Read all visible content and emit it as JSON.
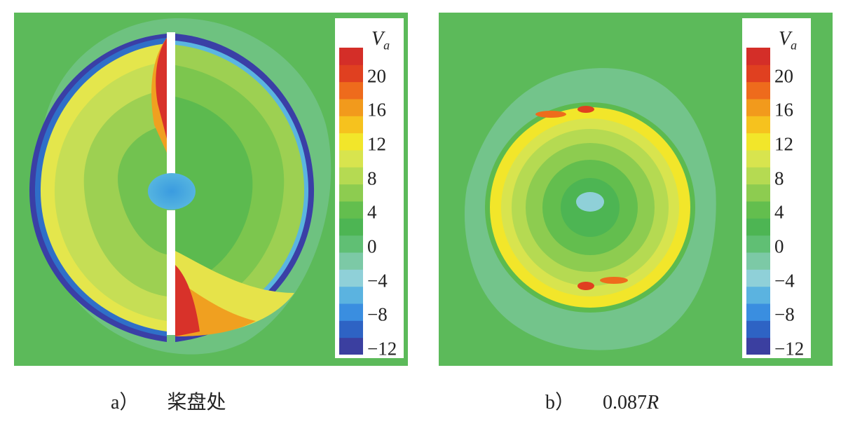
{
  "legend": {
    "symbol": "V",
    "subscript": "a",
    "ticks": [
      "20",
      "16",
      "12",
      "8",
      "4",
      "0",
      "−4",
      "−8",
      "−12"
    ],
    "colors": [
      "#3b3fa0",
      "#2e63c4",
      "#3a8ee0",
      "#5bb3e0",
      "#8fd0d8",
      "#7cc9a6",
      "#60bf74",
      "#4db553",
      "#63be4e",
      "#8dcc50",
      "#b5da52",
      "#d8e44e",
      "#f2e62a",
      "#f6c21e",
      "#f29a1c",
      "#ee6b1c",
      "#e04020",
      "#d42e28"
    ]
  },
  "captions": {
    "a": {
      "label": "a）",
      "text": "桨盘处"
    },
    "b": {
      "label": "b）",
      "text": "0.087",
      "text_italic": "R"
    }
  }
}
